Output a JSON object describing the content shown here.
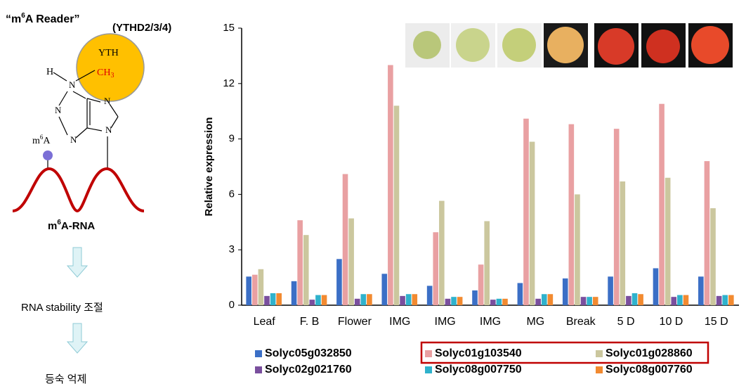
{
  "diagram": {
    "reader_title": [
      "“m",
      "6",
      "A Reader”"
    ],
    "ythd": "(YTHD2/3/4)",
    "yth": "YTH",
    "methyl": [
      "CH",
      "3"
    ],
    "hydrogen": "H",
    "nitrogens": [
      "N",
      "N",
      "N",
      "N",
      "N"
    ],
    "m6a": [
      "m",
      "6",
      "A"
    ],
    "rna_label": [
      "m",
      "6",
      "A-RNA"
    ],
    "step1": "RNA stability 조절",
    "step2": "등숙 억제"
  },
  "chart_data": {
    "type": "bar",
    "y_label": "Relative expression",
    "categories": [
      "Leaf",
      "F. B",
      "Flower",
      "IMG",
      "IMG",
      "IMG",
      "MG",
      "Break",
      "5 D",
      "10 D",
      "15 D"
    ],
    "series": [
      {
        "name": "Solyc05g032850",
        "color": "#3b6fc6",
        "values": [
          1.55,
          1.3,
          2.5,
          1.7,
          1.05,
          0.8,
          1.2,
          1.45,
          1.55,
          2.0,
          1.55
        ]
      },
      {
        "name": "Solyc01g103540",
        "color": "#e9a0a2",
        "values": [
          1.65,
          4.6,
          7.1,
          13.0,
          3.95,
          2.2,
          10.1,
          9.8,
          9.55,
          10.9,
          7.8
        ]
      },
      {
        "name": "Solyc01g028860",
        "color": "#cbc79e",
        "values": [
          1.95,
          3.8,
          4.7,
          10.8,
          5.65,
          4.55,
          8.85,
          6.0,
          6.7,
          6.9,
          5.25
        ]
      },
      {
        "name": "Solyc02g021760",
        "color": "#7a4f9e",
        "values": [
          0.5,
          0.3,
          0.35,
          0.5,
          0.35,
          0.3,
          0.35,
          0.45,
          0.5,
          0.45,
          0.5
        ]
      },
      {
        "name": "Solyc08g007750",
        "color": "#2fb2cc",
        "values": [
          0.65,
          0.55,
          0.6,
          0.6,
          0.45,
          0.35,
          0.6,
          0.45,
          0.65,
          0.55,
          0.55
        ]
      },
      {
        "name": "Solyc08g007760",
        "color": "#f28a30",
        "values": [
          0.65,
          0.55,
          0.6,
          0.6,
          0.45,
          0.35,
          0.6,
          0.45,
          0.6,
          0.55,
          0.55
        ]
      }
    ],
    "ylim": [
      0,
      15
    ],
    "yticks": [
      0,
      3,
      6,
      9,
      12,
      15
    ],
    "grid": false,
    "legend": "bottom"
  }
}
